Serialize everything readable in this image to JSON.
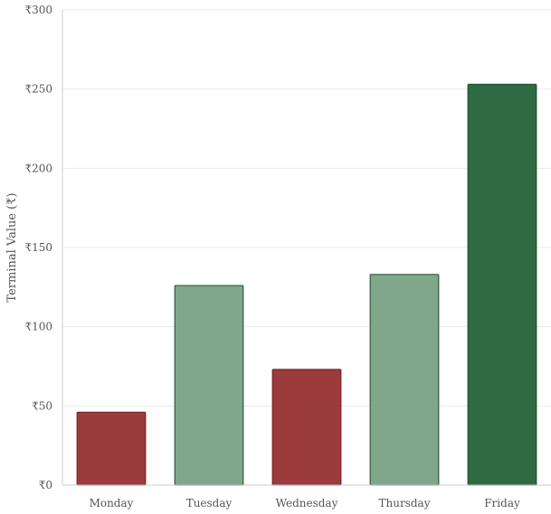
{
  "chart_data": {
    "type": "bar",
    "title": "",
    "xlabel": "",
    "ylabel": "Terminal Value (₹)",
    "categories": [
      "Monday",
      "Tuesday",
      "Wednesday",
      "Thursday",
      "Friday"
    ],
    "values": [
      46,
      126,
      73,
      133,
      253
    ],
    "ylim": [
      0,
      300
    ],
    "yticks": [
      0,
      50,
      100,
      150,
      200,
      250,
      300
    ],
    "ytick_labels": [
      "₹0",
      "₹50",
      "₹100",
      "₹150",
      "₹200",
      "₹250",
      "₹300"
    ],
    "grid": true,
    "legend": "none",
    "bar_fill_colors": [
      "#9b3b3b",
      "#80a68b",
      "#9b3b3b",
      "#80a68b",
      "#2e6b42"
    ],
    "bar_stroke_colors": [
      "#7a2525",
      "#2e5e3a",
      "#7a2525",
      "#2e5e3a",
      "#1f5230"
    ],
    "grid_color": "#e9e9e9",
    "axis_color": "#cccccc",
    "text_color": "#555555"
  }
}
